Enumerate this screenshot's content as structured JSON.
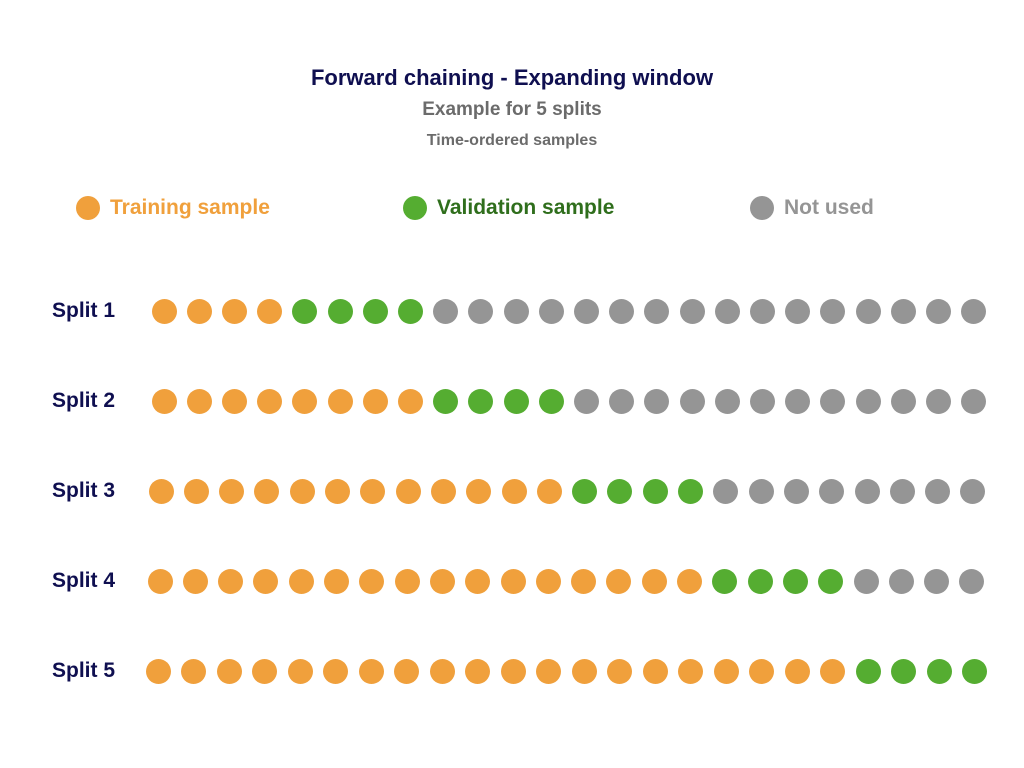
{
  "header": {
    "title": "Forward chaining - Expanding window",
    "subtitle": "Example for 5 splits",
    "caption": "Time-ordered samples"
  },
  "colors": {
    "title": "#0f0f50",
    "subtitle": "#6b6b6b",
    "training": "#f0a03c",
    "validation": "#55ad31",
    "not_used": "#959595",
    "validation_label": "#2f6e1c"
  },
  "legend": [
    {
      "label": "Training sample",
      "kind": "training",
      "icon": "orange-circle-icon"
    },
    {
      "label": "Validation sample",
      "kind": "validation",
      "icon": "green-circle-icon"
    },
    {
      "label": "Not used",
      "kind": "not_used",
      "icon": "gray-circle-icon"
    }
  ],
  "splits": [
    {
      "label": "Split 1",
      "training": 4,
      "validation": 4,
      "not_used": 16
    },
    {
      "label": "Split 2",
      "training": 8,
      "validation": 4,
      "not_used": 12
    },
    {
      "label": "Split 3",
      "training": 12,
      "validation": 4,
      "not_used": 8
    },
    {
      "label": "Split 4",
      "training": 16,
      "validation": 4,
      "not_used": 4
    },
    {
      "label": "Split 5",
      "training": 20,
      "validation": 4,
      "not_used": 0
    }
  ]
}
